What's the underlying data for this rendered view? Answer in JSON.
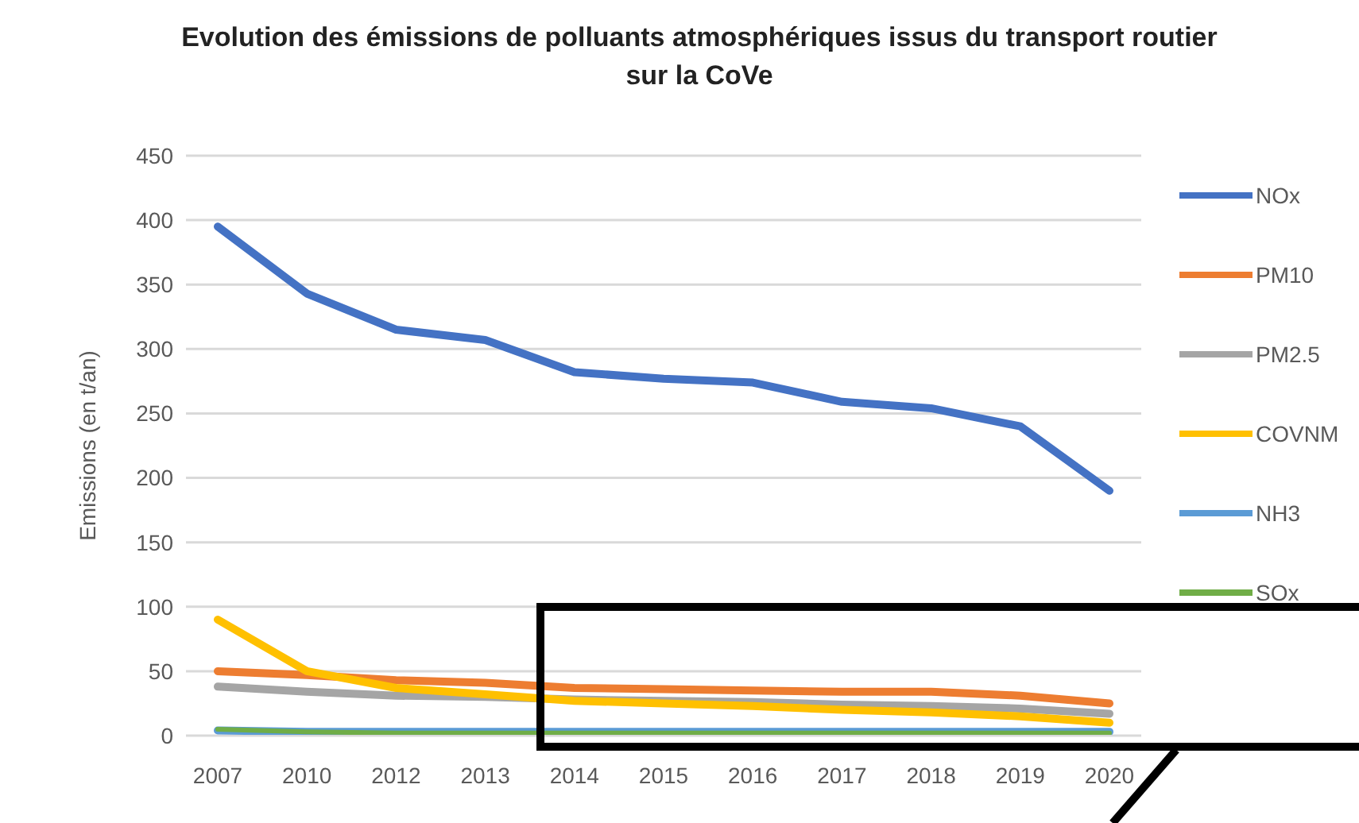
{
  "chart_data": {
    "type": "line",
    "title": "Evolution des émissions de polluants atmosphériques issus du transport routier sur la CoVe",
    "ylabel": "Emissions (en t/an)",
    "categories": [
      "2007",
      "2010",
      "2012",
      "2013",
      "2014",
      "2015",
      "2016",
      "2017",
      "2018",
      "2019",
      "2020"
    ],
    "series": [
      {
        "name": "NOx",
        "color": "#4472c4",
        "values": [
          395,
          343,
          315,
          307,
          282,
          277,
          274,
          259,
          254,
          240,
          190
        ]
      },
      {
        "name": "PM10",
        "color": "#ed7d31",
        "values": [
          50,
          47,
          43,
          41,
          37,
          36,
          35,
          34,
          34,
          31,
          25
        ]
      },
      {
        "name": "PM2.5",
        "color": "#a5a5a5",
        "values": [
          38,
          34,
          31,
          30,
          28,
          27,
          26,
          24,
          23,
          21,
          17
        ]
      },
      {
        "name": "COVNM",
        "color": "#ffc000",
        "values": [
          90,
          50,
          37,
          32,
          27,
          25,
          23,
          20,
          18,
          15,
          10
        ]
      },
      {
        "name": "NH3",
        "color": "#5b9bd5",
        "values": [
          4,
          3,
          3,
          3,
          3,
          3,
          3,
          3,
          3,
          3,
          3
        ]
      },
      {
        "name": "SOx",
        "color": "#70ad47",
        "values": [
          5,
          3,
          2,
          2,
          2,
          2,
          2,
          2,
          2,
          2,
          2
        ]
      }
    ],
    "ylim": [
      0,
      450
    ],
    "yticks": [
      0,
      50,
      100,
      150,
      200,
      250,
      300,
      350,
      400,
      450
    ],
    "grid": "y",
    "legend": "right",
    "marker": "none",
    "line_style": "solid"
  }
}
